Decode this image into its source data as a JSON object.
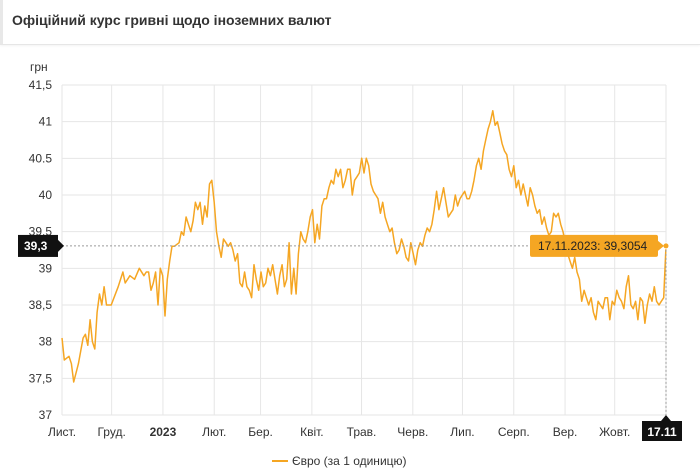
{
  "header": {
    "title": "Офіційний курс гривні щодо іноземних валют"
  },
  "colors": {
    "line": "#F5A623",
    "grid": "#e6e6e6",
    "crosshair": "#9a9a9a",
    "badge": "#111111",
    "tooltip_bg": "#F5A623"
  },
  "chart_data": {
    "type": "line",
    "y_unit": "грн",
    "ylim": [
      37,
      41.5
    ],
    "y_ticks": [
      {
        "v": 37,
        "label": "37"
      },
      {
        "v": 37.5,
        "label": "37,5"
      },
      {
        "v": 38,
        "label": "38"
      },
      {
        "v": 38.5,
        "label": "38,5"
      },
      {
        "v": 39,
        "label": "39"
      },
      {
        "v": 39.5,
        "label": "39.5"
      },
      {
        "v": 40,
        "label": "40"
      },
      {
        "v": 40.5,
        "label": "40.5"
      },
      {
        "v": 41,
        "label": "41"
      },
      {
        "v": 41.5,
        "label": "41,5"
      }
    ],
    "x_ticks": [
      {
        "i": 0,
        "label": "Лист.",
        "bold": false
      },
      {
        "i": 30,
        "label": "Груд.",
        "bold": false
      },
      {
        "i": 61,
        "label": "2023",
        "bold": true
      },
      {
        "i": 92,
        "label": "Лют.",
        "bold": false
      },
      {
        "i": 120,
        "label": "Бер.",
        "bold": false
      },
      {
        "i": 151,
        "label": "Квіт.",
        "bold": false
      },
      {
        "i": 181,
        "label": "Трав.",
        "bold": false
      },
      {
        "i": 212,
        "label": "Черв.",
        "bold": false
      },
      {
        "i": 242,
        "label": "Лип.",
        "bold": false
      },
      {
        "i": 273,
        "label": "Серп.",
        "bold": false
      },
      {
        "i": 304,
        "label": "Вер.",
        "bold": false
      },
      {
        "i": 334,
        "label": "Жовт.",
        "bold": false
      },
      {
        "i": 365,
        "label": "Лист.",
        "bold": false
      }
    ],
    "grid": true,
    "legend_position": "bottom",
    "series": [
      {
        "name": "Євро (за 1 одиницю)",
        "keypoints": [
          [
            0,
            38.05
          ],
          [
            1,
            37.75
          ],
          [
            3,
            37.8
          ],
          [
            4,
            37.7
          ],
          [
            5,
            37.45
          ],
          [
            7,
            37.7
          ],
          [
            9,
            38.05
          ],
          [
            10,
            38.1
          ],
          [
            11,
            37.95
          ],
          [
            12,
            38.3
          ],
          [
            13,
            38.0
          ],
          [
            14,
            37.9
          ],
          [
            15,
            38.4
          ],
          [
            16,
            38.65
          ],
          [
            17,
            38.5
          ],
          [
            18,
            38.75
          ],
          [
            19,
            38.5
          ],
          [
            21,
            38.5
          ],
          [
            24,
            38.75
          ],
          [
            26,
            38.95
          ],
          [
            27,
            38.8
          ],
          [
            29,
            38.9
          ],
          [
            31,
            38.85
          ],
          [
            33,
            39.0
          ],
          [
            35,
            38.9
          ],
          [
            36,
            38.95
          ],
          [
            37,
            38.95
          ],
          [
            38,
            38.7
          ],
          [
            39,
            38.8
          ],
          [
            40,
            38.95
          ],
          [
            41,
            38.5
          ],
          [
            42,
            39.0
          ],
          [
            43,
            38.9
          ],
          [
            44,
            38.35
          ],
          [
            45,
            38.85
          ],
          [
            46,
            39.1
          ],
          [
            47,
            39.3
          ],
          [
            48,
            39.3
          ],
          [
            50,
            39.35
          ],
          [
            51,
            39.5
          ],
          [
            52,
            39.45
          ],
          [
            53,
            39.7
          ],
          [
            54,
            39.6
          ],
          [
            55,
            39.5
          ],
          [
            56,
            39.65
          ],
          [
            57,
            39.9
          ],
          [
            58,
            39.8
          ],
          [
            59,
            39.9
          ],
          [
            60,
            39.6
          ],
          [
            61,
            39.85
          ],
          [
            62,
            39.7
          ],
          [
            63,
            40.15
          ],
          [
            64,
            40.2
          ],
          [
            65,
            39.9
          ],
          [
            66,
            39.5
          ],
          [
            67,
            39.3
          ],
          [
            68,
            39.15
          ],
          [
            69,
            39.4
          ],
          [
            70,
            39.35
          ],
          [
            71,
            39.3
          ],
          [
            72,
            39.35
          ],
          [
            73,
            39.25
          ],
          [
            74,
            39.1
          ],
          [
            75,
            39.2
          ],
          [
            76,
            38.8
          ],
          [
            77,
            38.75
          ],
          [
            78,
            38.95
          ],
          [
            79,
            38.75
          ],
          [
            80,
            38.7
          ],
          [
            81,
            38.6
          ],
          [
            82,
            39.05
          ],
          [
            83,
            38.85
          ],
          [
            84,
            38.7
          ],
          [
            85,
            38.95
          ],
          [
            86,
            38.75
          ],
          [
            87,
            38.8
          ],
          [
            88,
            39.0
          ],
          [
            89,
            38.9
          ],
          [
            90,
            39.05
          ],
          [
            91,
            38.85
          ],
          [
            92,
            38.65
          ],
          [
            93,
            38.9
          ],
          [
            94,
            39.05
          ],
          [
            95,
            38.75
          ],
          [
            96,
            38.85
          ],
          [
            97,
            39.35
          ],
          [
            98,
            38.65
          ],
          [
            99,
            39.0
          ],
          [
            100,
            38.65
          ],
          [
            101,
            39.2
          ],
          [
            102,
            39.5
          ],
          [
            103,
            39.4
          ],
          [
            104,
            39.35
          ],
          [
            105,
            39.5
          ],
          [
            106,
            39.7
          ],
          [
            107,
            39.8
          ],
          [
            108,
            39.35
          ],
          [
            109,
            39.6
          ],
          [
            110,
            39.4
          ],
          [
            111,
            39.85
          ],
          [
            112,
            39.95
          ],
          [
            113,
            39.95
          ],
          [
            114,
            40.1
          ],
          [
            115,
            40.2
          ],
          [
            116,
            40.15
          ],
          [
            117,
            40.35
          ],
          [
            118,
            40.25
          ],
          [
            119,
            40.35
          ],
          [
            120,
            40.1
          ],
          [
            121,
            40.2
          ],
          [
            122,
            40.35
          ],
          [
            123,
            40.35
          ],
          [
            124,
            40.0
          ],
          [
            125,
            40.2
          ],
          [
            126,
            40.25
          ],
          [
            127,
            40.3
          ],
          [
            128,
            40.5
          ],
          [
            129,
            40.3
          ],
          [
            130,
            40.5
          ],
          [
            131,
            40.4
          ],
          [
            132,
            40.15
          ],
          [
            133,
            40.05
          ],
          [
            134,
            40.0
          ],
          [
            135,
            39.95
          ],
          [
            136,
            39.75
          ],
          [
            137,
            39.9
          ],
          [
            138,
            39.7
          ],
          [
            139,
            39.6
          ],
          [
            140,
            39.5
          ],
          [
            141,
            39.55
          ],
          [
            142,
            39.35
          ],
          [
            143,
            39.2
          ],
          [
            144,
            39.25
          ],
          [
            145,
            39.4
          ],
          [
            146,
            39.3
          ],
          [
            147,
            39.15
          ],
          [
            148,
            39.1
          ],
          [
            149,
            39.35
          ],
          [
            150,
            39.2
          ],
          [
            151,
            39.05
          ],
          [
            152,
            39.25
          ],
          [
            153,
            39.35
          ],
          [
            154,
            39.3
          ],
          [
            155,
            39.45
          ],
          [
            156,
            39.55
          ],
          [
            157,
            39.5
          ],
          [
            158,
            39.6
          ],
          [
            159,
            39.8
          ],
          [
            160,
            40.05
          ],
          [
            161,
            39.8
          ],
          [
            162,
            39.95
          ],
          [
            163,
            40.1
          ],
          [
            164,
            39.9
          ],
          [
            165,
            39.7
          ],
          [
            166,
            39.75
          ],
          [
            167,
            39.8
          ],
          [
            168,
            40.0
          ],
          [
            169,
            39.85
          ],
          [
            170,
            39.95
          ],
          [
            171,
            40.0
          ],
          [
            172,
            40.05
          ],
          [
            173,
            39.95
          ],
          [
            174,
            39.95
          ],
          [
            175,
            40.05
          ],
          [
            176,
            40.2
          ],
          [
            177,
            40.4
          ],
          [
            178,
            40.5
          ],
          [
            179,
            40.35
          ],
          [
            180,
            40.6
          ],
          [
            181,
            40.75
          ],
          [
            182,
            40.9
          ],
          [
            183,
            41.0
          ],
          [
            184,
            41.15
          ],
          [
            185,
            40.95
          ],
          [
            186,
            41.0
          ],
          [
            187,
            40.85
          ],
          [
            188,
            40.7
          ],
          [
            189,
            40.6
          ],
          [
            190,
            40.55
          ],
          [
            191,
            40.35
          ],
          [
            192,
            40.25
          ],
          [
            193,
            40.4
          ],
          [
            194,
            40.1
          ],
          [
            195,
            40.2
          ],
          [
            196,
            40.0
          ],
          [
            197,
            40.15
          ],
          [
            198,
            40.0
          ],
          [
            199,
            39.85
          ],
          [
            200,
            40.1
          ],
          [
            201,
            40.0
          ],
          [
            202,
            39.85
          ],
          [
            203,
            39.75
          ],
          [
            204,
            39.8
          ],
          [
            205,
            39.6
          ],
          [
            206,
            39.7
          ],
          [
            207,
            39.55
          ],
          [
            208,
            39.45
          ],
          [
            209,
            39.5
          ],
          [
            210,
            39.75
          ],
          [
            211,
            39.7
          ],
          [
            212,
            39.75
          ],
          [
            213,
            39.6
          ],
          [
            214,
            39.5
          ],
          [
            215,
            39.35
          ],
          [
            216,
            39.2
          ],
          [
            217,
            39.1
          ],
          [
            218,
            39.0
          ],
          [
            219,
            39.15
          ],
          [
            220,
            38.95
          ],
          [
            221,
            38.85
          ],
          [
            222,
            38.55
          ],
          [
            223,
            38.7
          ],
          [
            224,
            38.6
          ],
          [
            225,
            38.5
          ],
          [
            226,
            38.6
          ],
          [
            227,
            38.4
          ],
          [
            228,
            38.3
          ],
          [
            229,
            38.55
          ],
          [
            230,
            38.5
          ],
          [
            231,
            38.45
          ],
          [
            232,
            38.6
          ],
          [
            233,
            38.6
          ],
          [
            234,
            38.3
          ],
          [
            235,
            38.55
          ],
          [
            236,
            38.5
          ],
          [
            237,
            38.7
          ],
          [
            238,
            38.6
          ],
          [
            239,
            38.55
          ],
          [
            240,
            38.45
          ],
          [
            241,
            38.75
          ],
          [
            242,
            38.9
          ],
          [
            243,
            38.5
          ],
          [
            244,
            38.45
          ],
          [
            245,
            38.55
          ],
          [
            246,
            38.3
          ],
          [
            247,
            38.6
          ],
          [
            248,
            38.55
          ],
          [
            249,
            38.25
          ],
          [
            250,
            38.5
          ],
          [
            251,
            38.65
          ],
          [
            252,
            38.55
          ],
          [
            253,
            38.75
          ],
          [
            254,
            38.55
          ],
          [
            255,
            38.5
          ],
          [
            256,
            38.55
          ],
          [
            257,
            38.6
          ],
          [
            258,
            39.3054
          ]
        ]
      }
    ],
    "current": {
      "label": "17.11.2023: 39,3054",
      "value": 39.3054,
      "y_badge": "39,3",
      "x_badge": "17.11"
    }
  }
}
